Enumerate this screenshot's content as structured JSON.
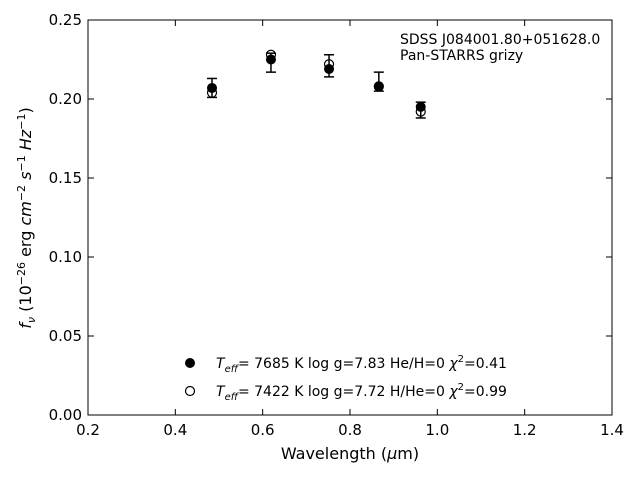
{
  "chart_data": {
    "type": "scatter",
    "title": "",
    "xlabel": "Wavelength (μm)",
    "ylabel": "f_ν (10^-26 erg cm^-2 s^-1 Hz^-1)",
    "xlim": [
      0.2,
      1.4
    ],
    "ylim": [
      0.0,
      0.25
    ],
    "xticks": [
      0.2,
      0.4,
      0.6,
      0.8,
      1.0,
      1.2,
      1.4
    ],
    "yticks": [
      0.0,
      0.05,
      0.1,
      0.15,
      0.2,
      0.25
    ],
    "xtick_labels": [
      "0.2",
      "0.4",
      "0.6",
      "0.8",
      "1.0",
      "1.2",
      "1.4"
    ],
    "ytick_labels": [
      "0.00",
      "0.05",
      "0.10",
      "0.15",
      "0.20",
      "0.25"
    ],
    "grid": false,
    "legend_position": "bottom-center",
    "annotation_lines": [
      "SDSS J084001.80+051628.0",
      "Pan-STARRS grizy"
    ],
    "observed": {
      "x": [
        0.484,
        0.619,
        0.752,
        0.866,
        0.962
      ],
      "y": [
        0.207,
        0.223,
        0.221,
        0.211,
        0.193
      ],
      "err": [
        0.006,
        0.006,
        0.007,
        0.006,
        0.005
      ]
    },
    "series": [
      {
        "legend_temp": "7685 K",
        "legend_logg": "log g=7.83",
        "legend_comp": "He/H=0",
        "legend_chi2": "=0.41",
        "marker": "filled",
        "x": [
          0.484,
          0.619,
          0.752,
          0.866,
          0.962
        ],
        "y": [
          0.207,
          0.225,
          0.219,
          0.208,
          0.195
        ]
      },
      {
        "legend_temp": "7422 K",
        "legend_logg": "log g=7.72",
        "legend_comp": "H/He=0",
        "legend_chi2": "=0.99",
        "marker": "open",
        "x": [
          0.484,
          0.619,
          0.752,
          0.866,
          0.962
        ],
        "y": [
          0.204,
          0.228,
          0.222,
          0.208,
          0.192
        ]
      }
    ]
  }
}
